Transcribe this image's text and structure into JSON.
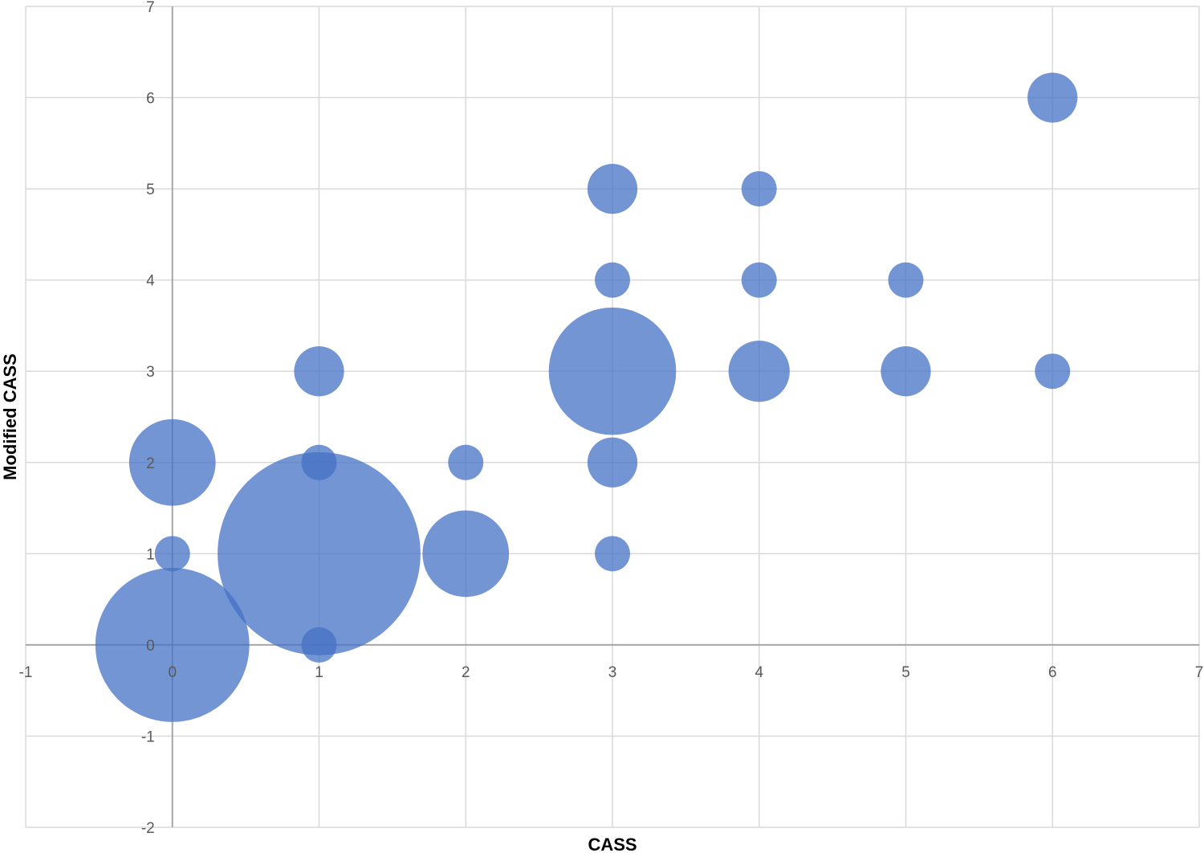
{
  "chart_data": {
    "type": "bubble",
    "title": "",
    "xlabel": "CASS",
    "ylabel": "Modified CASS",
    "xlim": [
      -1,
      7
    ],
    "ylim": [
      -2,
      7
    ],
    "xticks": [
      -1,
      0,
      1,
      2,
      3,
      4,
      5,
      6,
      7
    ],
    "yticks": [
      -2,
      -1,
      0,
      1,
      2,
      3,
      4,
      5,
      6,
      7
    ],
    "grid": true,
    "legend": "none",
    "color": "#4472C4",
    "points": [
      {
        "x": 0,
        "y": 0,
        "size": 19
      },
      {
        "x": 0,
        "y": 1,
        "size": 1
      },
      {
        "x": 0,
        "y": 2,
        "size": 6
      },
      {
        "x": 1,
        "y": 0,
        "size": 1
      },
      {
        "x": 1,
        "y": 1,
        "size": 33
      },
      {
        "x": 1,
        "y": 2,
        "size": 1
      },
      {
        "x": 1,
        "y": 3,
        "size": 2
      },
      {
        "x": 2,
        "y": 1,
        "size": 6
      },
      {
        "x": 2,
        "y": 2,
        "size": 1
      },
      {
        "x": 3,
        "y": 1,
        "size": 1
      },
      {
        "x": 3,
        "y": 2,
        "size": 2
      },
      {
        "x": 3,
        "y": 3,
        "size": 13
      },
      {
        "x": 3,
        "y": 4,
        "size": 1
      },
      {
        "x": 3,
        "y": 5,
        "size": 2
      },
      {
        "x": 4,
        "y": 3,
        "size": 3
      },
      {
        "x": 4,
        "y": 4,
        "size": 1
      },
      {
        "x": 4,
        "y": 5,
        "size": 1
      },
      {
        "x": 5,
        "y": 3,
        "size": 2
      },
      {
        "x": 5,
        "y": 4,
        "size": 1
      },
      {
        "x": 6,
        "y": 3,
        "size": 1
      },
      {
        "x": 6,
        "y": 6,
        "size": 2
      }
    ]
  }
}
